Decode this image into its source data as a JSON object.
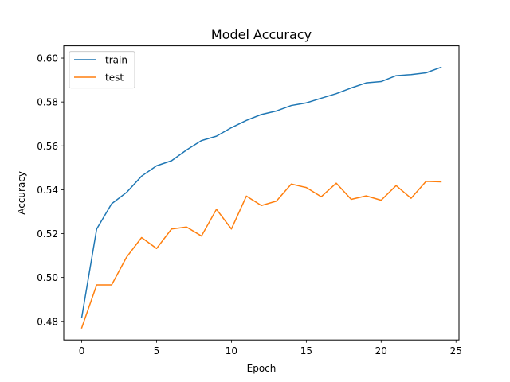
{
  "chart_data": {
    "type": "line",
    "title": "Model Accuracy",
    "xlabel": "Epoch",
    "ylabel": "Accuracy",
    "xlim": [
      -1.2,
      25.2
    ],
    "ylim": [
      0.4715,
      0.6056
    ],
    "xticks": [
      0,
      5,
      10,
      15,
      20,
      25
    ],
    "yticks": [
      0.48,
      0.5,
      0.52,
      0.54,
      0.56,
      0.58,
      0.6
    ],
    "ytick_labels": [
      "0.48",
      "0.50",
      "0.52",
      "0.54",
      "0.56",
      "0.58",
      "0.60"
    ],
    "grid": false,
    "legend_position": "top-left",
    "x": [
      0,
      1,
      2,
      3,
      4,
      5,
      6,
      7,
      8,
      9,
      10,
      11,
      12,
      13,
      14,
      15,
      16,
      17,
      18,
      19,
      20,
      21,
      22,
      23,
      24
    ],
    "series": [
      {
        "name": "train",
        "color": "#1f77b4",
        "values": [
          0.4817,
          0.5221,
          0.5336,
          0.5388,
          0.5462,
          0.5509,
          0.5532,
          0.5581,
          0.5624,
          0.5644,
          0.5683,
          0.5716,
          0.5743,
          0.5759,
          0.5784,
          0.5796,
          0.5817,
          0.5838,
          0.5864,
          0.5887,
          0.5893,
          0.592,
          0.5925,
          0.5933,
          0.5958
        ]
      },
      {
        "name": "test",
        "color": "#ff7f0e",
        "values": [
          0.477,
          0.4966,
          0.4966,
          0.5093,
          0.5182,
          0.5132,
          0.5221,
          0.523,
          0.5189,
          0.5311,
          0.5221,
          0.5371,
          0.5328,
          0.5348,
          0.5426,
          0.541,
          0.5368,
          0.543,
          0.5356,
          0.5372,
          0.5352,
          0.5419,
          0.5361,
          0.5438,
          0.5436
        ]
      }
    ]
  }
}
